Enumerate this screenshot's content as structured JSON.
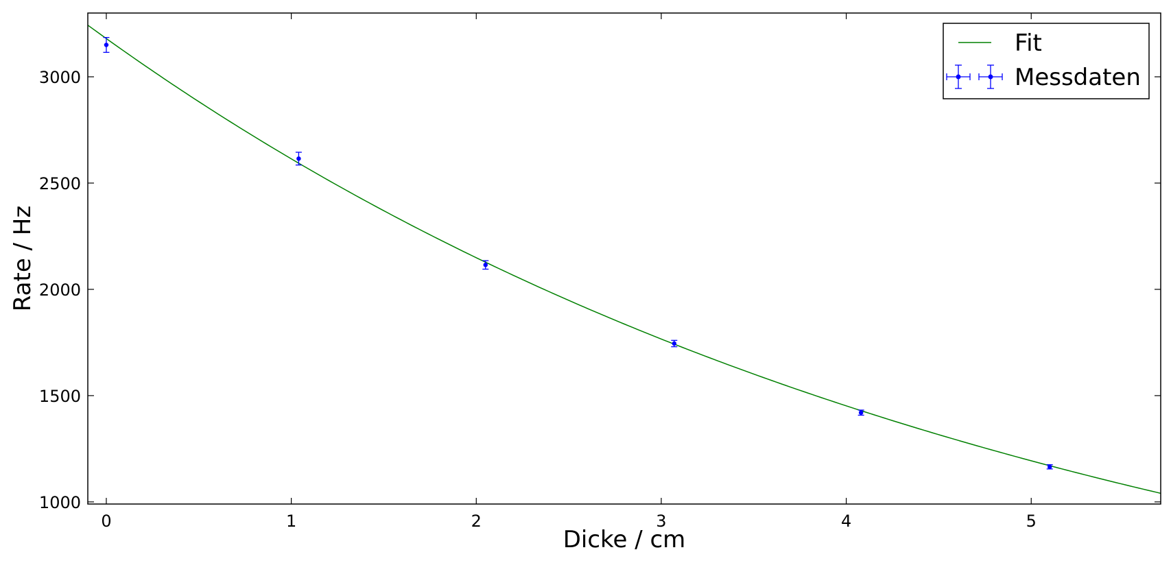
{
  "chart_data": {
    "type": "scatter",
    "title": "",
    "xlabel": "Dicke / cm",
    "ylabel": "Rate / Hz",
    "xlim": [
      -0.1,
      5.7
    ],
    "ylim": [
      990,
      3300
    ],
    "x_ticks": [
      0,
      1,
      2,
      3,
      4,
      5
    ],
    "y_ticks": [
      1000,
      1500,
      2000,
      2500,
      3000
    ],
    "grid": false,
    "legend_position": "top-right",
    "series": [
      {
        "name": "Fit",
        "kind": "line",
        "color": "#008000",
        "model": "a * exp(-b * x)",
        "params": {
          "a": 3180,
          "b": 0.196
        }
      },
      {
        "name": "Messdaten",
        "kind": "errorbar",
        "color": "#0000ff",
        "x": [
          0,
          1.04,
          2.05,
          3.07,
          4.08,
          5.1
        ],
        "y": [
          3150,
          2615,
          2115,
          1745,
          1420,
          1165
        ],
        "yerr": [
          35,
          30,
          20,
          15,
          12,
          10
        ]
      }
    ]
  }
}
